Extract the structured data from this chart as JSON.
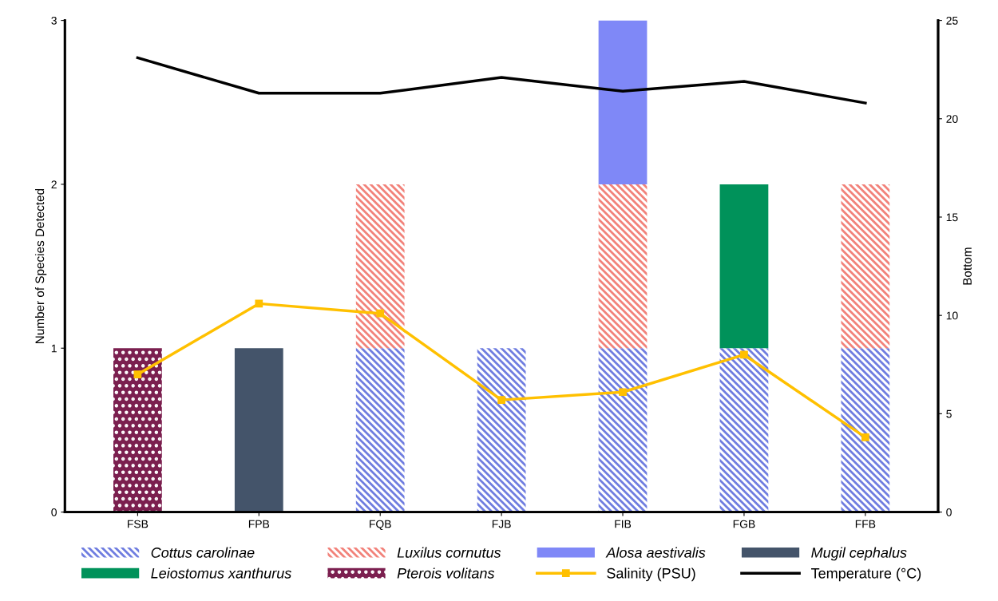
{
  "chart_data": {
    "type": "bar",
    "stacked": true,
    "ylabel": "Number of Species Detected",
    "y2label": "Bottom",
    "categories": [
      "FSB",
      "FPB",
      "FQB",
      "FJB",
      "FIB",
      "FGB",
      "FFB"
    ],
    "ylim": [
      0,
      3
    ],
    "yticks": [
      0,
      1,
      2,
      3
    ],
    "y2lim": [
      0,
      25
    ],
    "y2ticks": [
      0,
      5,
      10,
      15,
      20,
      25
    ],
    "grid": false,
    "legend": "bottom",
    "series": [
      {
        "name": "Cottus carolinae",
        "color": "#6f7de0",
        "values": [
          0,
          0,
          1,
          1,
          1,
          1,
          1
        ]
      },
      {
        "name": "Luxilus cornutus",
        "color": "#f2827a",
        "values": [
          0,
          0,
          1,
          0,
          1,
          0,
          1
        ]
      },
      {
        "name": "Alosa aestivalis",
        "color": "#7f88f7",
        "values": [
          0,
          0,
          0,
          0,
          1,
          0,
          0
        ]
      },
      {
        "name": "Mugil cephalus",
        "color": "#44546a",
        "values": [
          0,
          1,
          0,
          0,
          0,
          0,
          0
        ]
      },
      {
        "name": "Leiostomus xanthurus",
        "color": "#00925a",
        "values": [
          0,
          0,
          0,
          0,
          0,
          1,
          0
        ]
      },
      {
        "name": "Pterois volitans",
        "color": "#7b1f4f",
        "values": [
          1,
          0,
          0,
          0,
          0,
          0,
          0
        ]
      },
      {
        "name": "Salinity (PSU)",
        "type": "line",
        "axis": "y2",
        "marker": "square",
        "color": "#ffc000",
        "values": [
          7.0,
          10.6,
          10.1,
          5.7,
          6.1,
          8.0,
          3.8
        ]
      },
      {
        "name": "Temperature (°C)",
        "type": "line",
        "axis": "y2",
        "marker": "none",
        "color": "#000000",
        "values": [
          23.1,
          21.3,
          21.3,
          22.1,
          21.4,
          21.9,
          20.8
        ]
      }
    ]
  }
}
